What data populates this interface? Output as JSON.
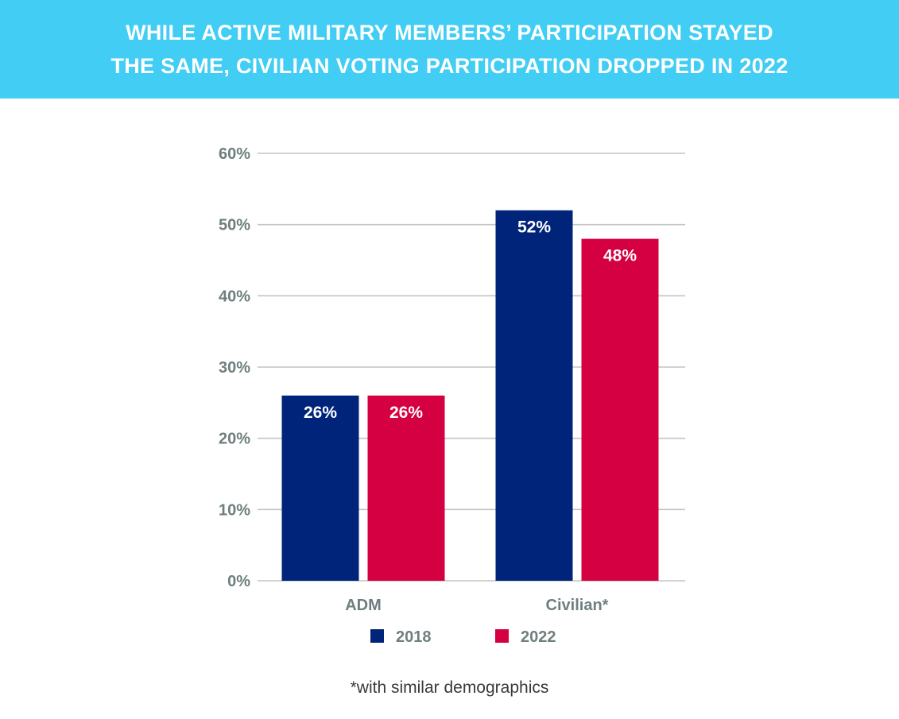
{
  "header": {
    "title_line1": "WHILE ACTIVE MILITARY MEMBERS’ PARTICIPATION STAYED",
    "title_line2": "THE SAME, CIVILIAN VOTING PARTICIPATION DROPPED IN 2022"
  },
  "footnote": "*with similar demographics",
  "colors": {
    "header_bg": "#41cdf4",
    "series_2018": "#00247a",
    "series_2022": "#d50041",
    "grid": "#c3c3c3",
    "axis_text": "#6f7e7e"
  },
  "chart_data": {
    "type": "bar",
    "title": "WHILE ACTIVE MILITARY MEMBERS’ PARTICIPATION STAYED THE SAME, CIVILIAN VOTING PARTICIPATION DROPPED IN 2022",
    "categories": [
      "ADM",
      "Civilian*"
    ],
    "series": [
      {
        "name": "2018",
        "color": "#00247a",
        "values": [
          26,
          52
        ],
        "labels": [
          "26%",
          "52%"
        ]
      },
      {
        "name": "2022",
        "color": "#d50041",
        "values": [
          26,
          48
        ],
        "labels": [
          "26%",
          "48%"
        ]
      }
    ],
    "ylim": [
      0,
      60
    ],
    "yticks": [
      0,
      10,
      20,
      30,
      40,
      50,
      60
    ],
    "ytick_labels": [
      "0%",
      "10%",
      "20%",
      "30%",
      "40%",
      "50%",
      "60%"
    ],
    "xlabel": "",
    "ylabel": "",
    "grid": true,
    "legend": "bottom"
  }
}
